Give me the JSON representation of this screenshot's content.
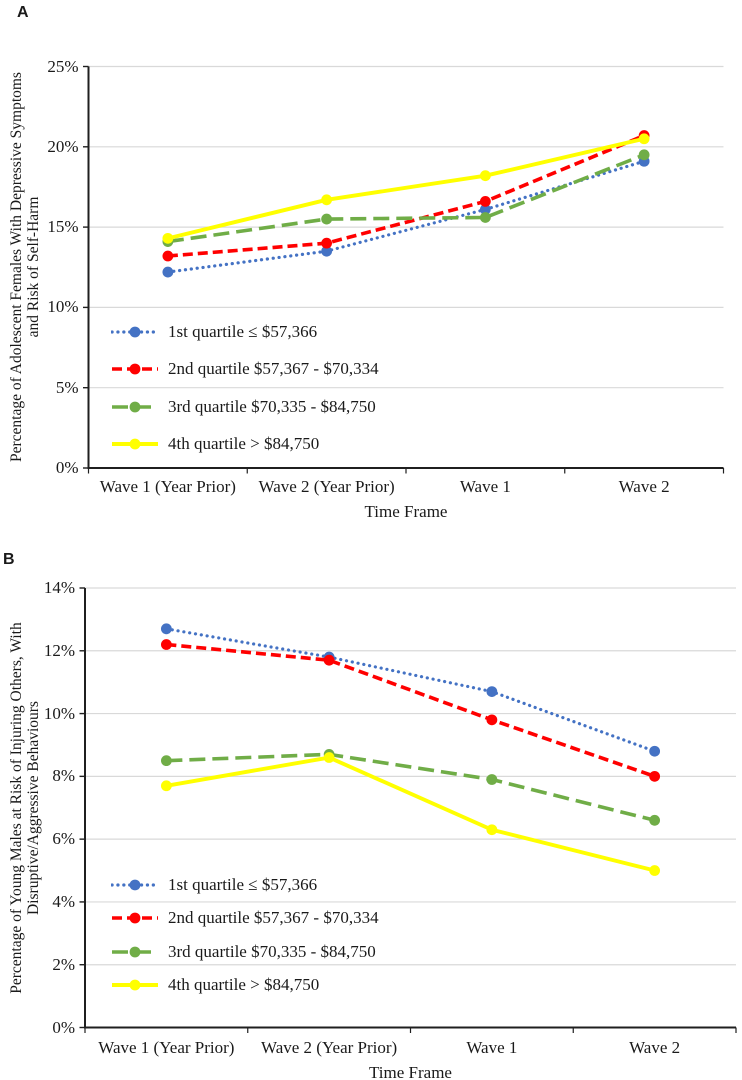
{
  "figure": {
    "background": "#ffffff",
    "text_color": "#1a1a1a",
    "grid_color": "#d9d9d9",
    "axis_color": "#1f1f1f"
  },
  "chart_data": [
    {
      "panel_label": "A",
      "type": "line",
      "categories": [
        "Wave 1 (Year Prior)",
        "Wave 2 (Year Prior)",
        "Wave 1",
        "Wave 2"
      ],
      "xlabel": "Time Frame",
      "ylabel_lines": [
        "Percentage of Adolescent Females With Depressive Symptoms",
        "and Risk of Self-Harm"
      ],
      "ylim": [
        0,
        25
      ],
      "ytick_step": 5,
      "ytick_labels": [
        "0%",
        "5%",
        "10%",
        "15%",
        "20%",
        "25%"
      ],
      "grid": true,
      "legend_position": "inside-lower-left",
      "series": [
        {
          "name": "1st quartile ≤ $57,366",
          "color": "#4472c4",
          "line_style": "dotted",
          "values": [
            12.2,
            13.5,
            16.1,
            19.1
          ]
        },
        {
          "name": "2nd quartile $57,367 - $70,334",
          "color": "#ff0000",
          "line_style": "dashed",
          "values": [
            13.2,
            14.0,
            16.6,
            20.7
          ]
        },
        {
          "name": "3rd quartile $70,335 - $84,750",
          "color": "#70ad47",
          "line_style": "long-dash",
          "values": [
            14.1,
            15.5,
            15.6,
            19.5
          ]
        },
        {
          "name": "4th quartile > $84,750",
          "color": "#ffff00",
          "line_style": "solid",
          "values": [
            14.3,
            16.7,
            18.2,
            20.5
          ]
        }
      ]
    },
    {
      "panel_label": "B",
      "type": "line",
      "categories": [
        "Wave 1 (Year Prior)",
        "Wave 2 (Year Prior)",
        "Wave 1",
        "Wave 2"
      ],
      "xlabel": "Time Frame",
      "ylabel_lines": [
        "Percentage of Young Males at Risk of Injuring Others, With",
        "Disruptive/Aggressive Behaviours"
      ],
      "ylim": [
        0,
        14
      ],
      "ytick_step": 2,
      "ytick_labels": [
        "0%",
        "2%",
        "4%",
        "6%",
        "8%",
        "10%",
        "12%",
        "14%"
      ],
      "grid": true,
      "legend_position": "inside-lower-left",
      "series": [
        {
          "name": "1st quartile ≤ $57,366",
          "color": "#4472c4",
          "line_style": "dotted",
          "values": [
            12.7,
            11.8,
            10.7,
            8.8
          ]
        },
        {
          "name": "2nd quartile $57,367 - $70,334",
          "color": "#ff0000",
          "line_style": "dashed",
          "values": [
            12.2,
            11.7,
            9.8,
            8.0
          ]
        },
        {
          "name": "3rd quartile $70,335 - $84,750",
          "color": "#70ad47",
          "line_style": "long-dash",
          "values": [
            8.5,
            8.7,
            7.9,
            6.6
          ]
        },
        {
          "name": "4th quartile > $84,750",
          "color": "#ffff00",
          "line_style": "solid",
          "values": [
            7.7,
            8.6,
            6.3,
            5.0
          ]
        }
      ]
    }
  ]
}
